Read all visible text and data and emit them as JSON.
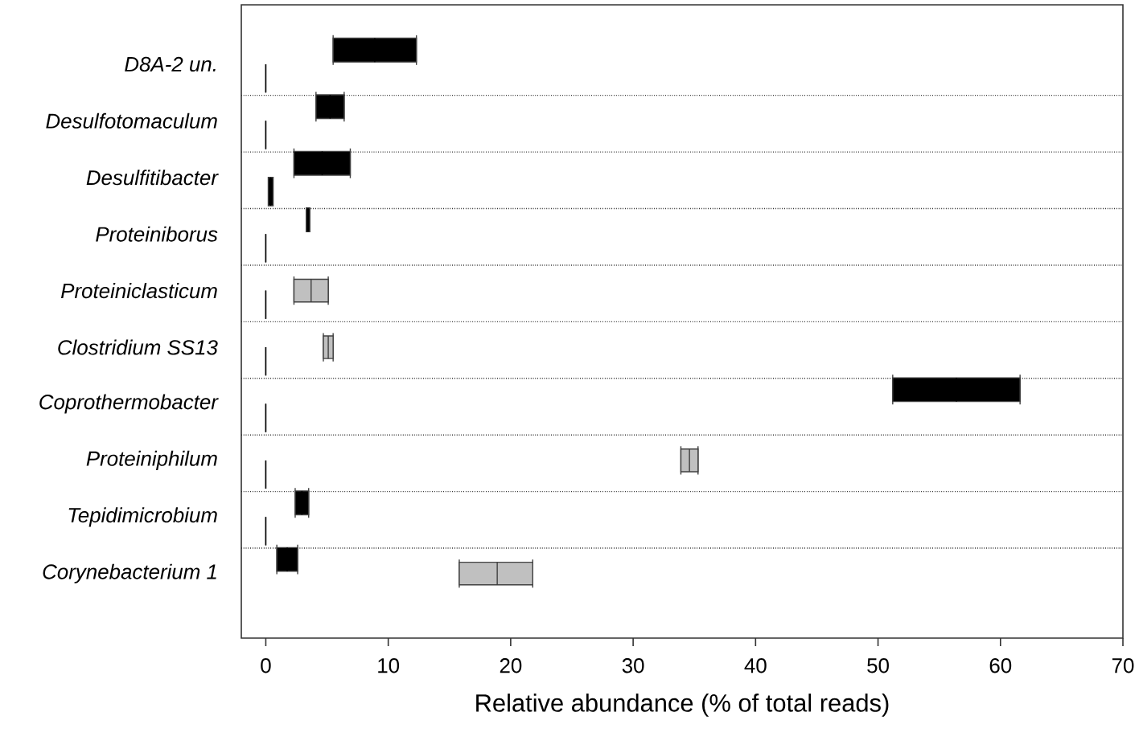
{
  "chart_data": {
    "type": "box",
    "orientation": "horizontal",
    "categories": [
      "D8A-2 un.",
      "Desulfotomaculum",
      "Desulfitibacter",
      "Proteiniborus",
      "Proteiniclasticum",
      "Clostridium SS13",
      "Coprothermobacter",
      "Proteiniphilum",
      "Tepidimicrobium",
      "Corynebacterium 1"
    ],
    "xlabel": "Relative abundance (% of total reads)",
    "xlim": [
      -2,
      70
    ],
    "xticks": [
      0,
      10,
      20,
      30,
      40,
      50,
      60,
      70
    ],
    "grid": "y",
    "series": [
      {
        "color": "#000000",
        "boxes": [
          {
            "low": 5.5,
            "q1": 5.5,
            "median": 8.9,
            "q3": 12.3,
            "high": 12.3
          },
          {
            "low": 4.1,
            "q1": 4.1,
            "median": 5.25,
            "q3": 6.4,
            "high": 6.4
          },
          {
            "low": 2.3,
            "q1": 2.3,
            "median": 4.6,
            "q3": 6.9,
            "high": 6.9
          },
          {
            "low": 3.3,
            "q1": 3.3,
            "median": 3.45,
            "q3": 3.6,
            "high": 3.6
          },
          null,
          null,
          {
            "low": 51.2,
            "q1": 51.2,
            "median": 56.4,
            "q3": 61.6,
            "high": 61.6
          },
          null,
          {
            "low": 2.4,
            "q1": 2.4,
            "median": 2.95,
            "q3": 3.5,
            "high": 3.5
          },
          {
            "low": 0.9,
            "q1": 0.9,
            "median": 1.75,
            "q3": 2.6,
            "high": 2.6
          }
        ]
      },
      {
        "color": "#c0c0c0",
        "boxes": [
          null,
          null,
          null,
          null,
          {
            "low": 2.3,
            "q1": 2.3,
            "median": 3.7,
            "q3": 5.1,
            "high": 5.1
          },
          {
            "low": 4.7,
            "q1": 4.7,
            "median": 5.1,
            "q3": 5.5,
            "high": 5.5
          },
          null,
          {
            "low": 33.9,
            "q1": 33.9,
            "median": 34.6,
            "q3": 35.3,
            "high": 35.3
          },
          null,
          {
            "low": 15.8,
            "q1": 15.8,
            "median": 18.9,
            "q3": 21.8,
            "high": 21.8
          }
        ]
      },
      {
        "color": "#000000",
        "boxes": [
          {
            "low": 0,
            "q1": 0,
            "median": 0,
            "q3": 0,
            "high": 0
          },
          {
            "low": 0,
            "q1": 0,
            "median": 0,
            "q3": 0,
            "high": 0
          },
          {
            "low": 0.2,
            "q1": 0.2,
            "median": 0.4,
            "q3": 0.6,
            "high": 0.6
          },
          {
            "low": 0,
            "q1": 0,
            "median": 0,
            "q3": 0,
            "high": 0
          },
          {
            "low": 0,
            "q1": 0,
            "median": 0,
            "q3": 0,
            "high": 0
          },
          {
            "low": 0,
            "q1": 0,
            "median": 0,
            "q3": 0,
            "high": 0
          },
          {
            "low": 0,
            "q1": 0,
            "median": 0,
            "q3": 0,
            "high": 0
          },
          {
            "low": 0,
            "q1": 0,
            "median": 0,
            "q3": 0,
            "high": 0
          },
          {
            "low": 0,
            "q1": 0,
            "median": 0,
            "q3": 0,
            "high": 0
          },
          null
        ]
      }
    ]
  }
}
